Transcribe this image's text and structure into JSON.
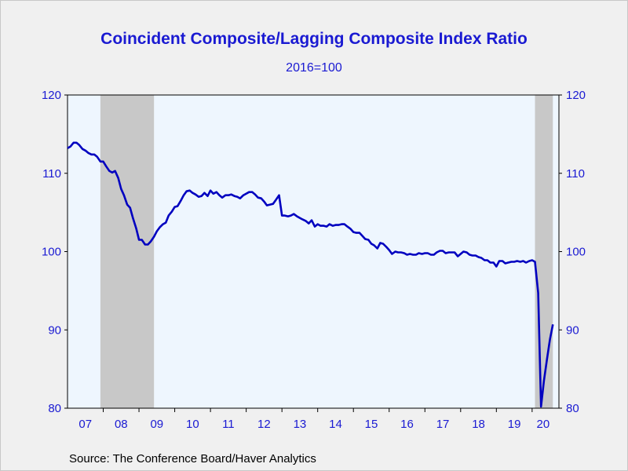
{
  "chart_title": "Coincident Composite/Lagging Composite Index Ratio",
  "chart_subtitle": "2016=100",
  "source_text": "Source:  The Conference Board/Haver Analytics",
  "colors": {
    "line": "#0000c0",
    "text": "#1a1ad2",
    "plot_bg": "#eef6fe",
    "recession": "#c8c8c8"
  },
  "chart_data": {
    "type": "line",
    "title": "Coincident Composite/Lagging Composite Index Ratio",
    "subtitle": "2016=100",
    "ylim": [
      80,
      120
    ],
    "y_ticks": [
      80,
      90,
      100,
      110,
      120
    ],
    "y_axis_both_sides": true,
    "xlim": [
      2007.0,
      2020.75
    ],
    "x_tick_labels": [
      "07",
      "08",
      "09",
      "10",
      "11",
      "12",
      "13",
      "14",
      "15",
      "16",
      "17",
      "18",
      "19",
      "20"
    ],
    "grid": false,
    "recession_shading": [
      {
        "start": 2007.92,
        "end": 2009.42
      },
      {
        "start": 2020.08,
        "end": 2020.58
      }
    ],
    "series": [
      {
        "values": [
          [
            2007.0,
            113.2
          ],
          [
            2007.08,
            113.4
          ],
          [
            2007.17,
            113.9
          ],
          [
            2007.25,
            113.9
          ],
          [
            2007.33,
            113.6
          ],
          [
            2007.42,
            113.1
          ],
          [
            2007.5,
            112.9
          ],
          [
            2007.58,
            112.6
          ],
          [
            2007.67,
            112.4
          ],
          [
            2007.75,
            112.4
          ],
          [
            2007.83,
            112.1
          ],
          [
            2007.92,
            111.5
          ],
          [
            2008.0,
            111.5
          ],
          [
            2008.08,
            110.9
          ],
          [
            2008.17,
            110.3
          ],
          [
            2008.25,
            110.1
          ],
          [
            2008.33,
            110.3
          ],
          [
            2008.42,
            109.4
          ],
          [
            2008.5,
            108.0
          ],
          [
            2008.58,
            107.2
          ],
          [
            2008.67,
            106.0
          ],
          [
            2008.75,
            105.6
          ],
          [
            2008.83,
            104.3
          ],
          [
            2008.92,
            103.0
          ],
          [
            2009.0,
            101.5
          ],
          [
            2009.08,
            101.5
          ],
          [
            2009.17,
            100.9
          ],
          [
            2009.25,
            100.9
          ],
          [
            2009.33,
            101.3
          ],
          [
            2009.42,
            101.9
          ],
          [
            2009.5,
            102.6
          ],
          [
            2009.58,
            103.1
          ],
          [
            2009.67,
            103.5
          ],
          [
            2009.75,
            103.7
          ],
          [
            2009.83,
            104.6
          ],
          [
            2009.92,
            105.1
          ],
          [
            2010.0,
            105.7
          ],
          [
            2010.08,
            105.8
          ],
          [
            2010.17,
            106.5
          ],
          [
            2010.25,
            107.2
          ],
          [
            2010.33,
            107.7
          ],
          [
            2010.42,
            107.8
          ],
          [
            2010.5,
            107.5
          ],
          [
            2010.58,
            107.3
          ],
          [
            2010.67,
            107.0
          ],
          [
            2010.75,
            107.1
          ],
          [
            2010.83,
            107.5
          ],
          [
            2010.92,
            107.1
          ],
          [
            2011.0,
            107.8
          ],
          [
            2011.08,
            107.4
          ],
          [
            2011.17,
            107.6
          ],
          [
            2011.25,
            107.2
          ],
          [
            2011.33,
            106.9
          ],
          [
            2011.42,
            107.2
          ],
          [
            2011.5,
            107.2
          ],
          [
            2011.58,
            107.3
          ],
          [
            2011.67,
            107.1
          ],
          [
            2011.75,
            107.0
          ],
          [
            2011.83,
            106.8
          ],
          [
            2011.92,
            107.2
          ],
          [
            2012.0,
            107.4
          ],
          [
            2012.08,
            107.6
          ],
          [
            2012.17,
            107.6
          ],
          [
            2012.25,
            107.3
          ],
          [
            2012.33,
            106.9
          ],
          [
            2012.42,
            106.8
          ],
          [
            2012.5,
            106.4
          ],
          [
            2012.58,
            105.9
          ],
          [
            2012.67,
            106.0
          ],
          [
            2012.75,
            106.1
          ],
          [
            2012.83,
            106.6
          ],
          [
            2012.92,
            107.2
          ],
          [
            2013.0,
            104.6
          ],
          [
            2013.08,
            104.6
          ],
          [
            2013.17,
            104.5
          ],
          [
            2013.25,
            104.6
          ],
          [
            2013.33,
            104.8
          ],
          [
            2013.42,
            104.5
          ],
          [
            2013.5,
            104.3
          ],
          [
            2013.58,
            104.1
          ],
          [
            2013.67,
            103.9
          ],
          [
            2013.75,
            103.6
          ],
          [
            2013.83,
            104.0
          ],
          [
            2013.92,
            103.2
          ],
          [
            2014.0,
            103.5
          ],
          [
            2014.08,
            103.3
          ],
          [
            2014.17,
            103.3
          ],
          [
            2014.25,
            103.2
          ],
          [
            2014.33,
            103.5
          ],
          [
            2014.42,
            103.3
          ],
          [
            2014.5,
            103.4
          ],
          [
            2014.58,
            103.4
          ],
          [
            2014.67,
            103.5
          ],
          [
            2014.75,
            103.5
          ],
          [
            2014.83,
            103.2
          ],
          [
            2014.92,
            102.9
          ],
          [
            2015.0,
            102.5
          ],
          [
            2015.08,
            102.4
          ],
          [
            2015.17,
            102.4
          ],
          [
            2015.25,
            102.0
          ],
          [
            2015.33,
            101.6
          ],
          [
            2015.42,
            101.5
          ],
          [
            2015.5,
            101.0
          ],
          [
            2015.58,
            100.8
          ],
          [
            2015.67,
            100.4
          ],
          [
            2015.75,
            101.1
          ],
          [
            2015.83,
            101.0
          ],
          [
            2015.92,
            100.6
          ],
          [
            2016.0,
            100.2
          ],
          [
            2016.08,
            99.7
          ],
          [
            2016.17,
            100.0
          ],
          [
            2016.25,
            99.9
          ],
          [
            2016.33,
            99.9
          ],
          [
            2016.42,
            99.8
          ],
          [
            2016.5,
            99.6
          ],
          [
            2016.58,
            99.7
          ],
          [
            2016.67,
            99.6
          ],
          [
            2016.75,
            99.6
          ],
          [
            2016.83,
            99.8
          ],
          [
            2016.92,
            99.7
          ],
          [
            2017.0,
            99.8
          ],
          [
            2017.08,
            99.8
          ],
          [
            2017.17,
            99.6
          ],
          [
            2017.25,
            99.6
          ],
          [
            2017.33,
            99.9
          ],
          [
            2017.42,
            100.1
          ],
          [
            2017.5,
            100.1
          ],
          [
            2017.58,
            99.8
          ],
          [
            2017.67,
            99.9
          ],
          [
            2017.75,
            99.9
          ],
          [
            2017.83,
            99.9
          ],
          [
            2017.92,
            99.4
          ],
          [
            2018.0,
            99.7
          ],
          [
            2018.08,
            100.0
          ],
          [
            2018.17,
            99.9
          ],
          [
            2018.25,
            99.6
          ],
          [
            2018.33,
            99.5
          ],
          [
            2018.42,
            99.5
          ],
          [
            2018.5,
            99.3
          ],
          [
            2018.58,
            99.2
          ],
          [
            2018.67,
            98.9
          ],
          [
            2018.75,
            98.9
          ],
          [
            2018.83,
            98.6
          ],
          [
            2018.92,
            98.6
          ],
          [
            2019.0,
            98.1
          ],
          [
            2019.08,
            98.8
          ],
          [
            2019.17,
            98.8
          ],
          [
            2019.25,
            98.5
          ],
          [
            2019.33,
            98.6
          ],
          [
            2019.42,
            98.7
          ],
          [
            2019.5,
            98.7
          ],
          [
            2019.58,
            98.8
          ],
          [
            2019.67,
            98.7
          ],
          [
            2019.75,
            98.8
          ],
          [
            2019.83,
            98.6
          ],
          [
            2019.92,
            98.8
          ],
          [
            2020.0,
            98.9
          ],
          [
            2020.08,
            98.7
          ],
          [
            2020.17,
            94.7
          ],
          [
            2020.25,
            80.2
          ],
          [
            2020.33,
            83.5
          ],
          [
            2020.42,
            86.4
          ],
          [
            2020.5,
            88.8
          ],
          [
            2020.58,
            90.7
          ]
        ]
      }
    ]
  }
}
